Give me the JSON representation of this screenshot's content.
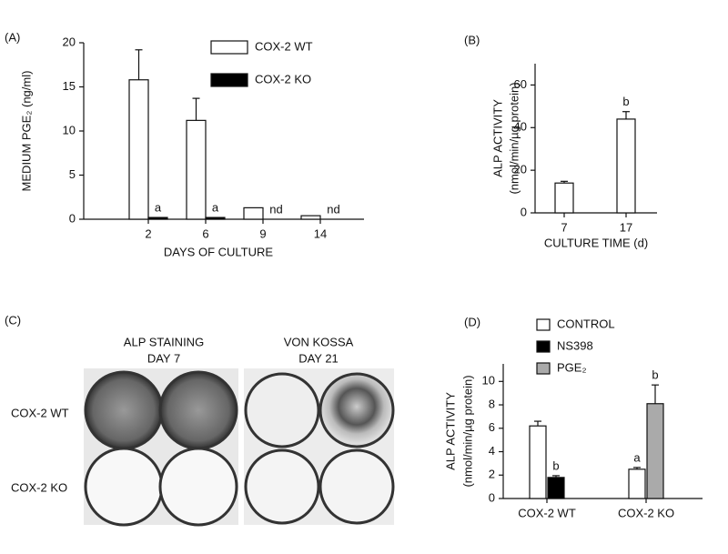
{
  "chart_data": [
    {
      "type": "bar",
      "panel_label": "(A)",
      "ylabel": "MEDIUM PGE₂ (ng/ml)",
      "xlabel": "DAYS OF CULTURE",
      "categories": [
        "2",
        "6",
        "9",
        "14"
      ],
      "series": [
        {
          "name": "COX-2 WT",
          "color": "#ffffff",
          "values": [
            15.8,
            11.2,
            1.3,
            0.4
          ],
          "errors": [
            3.4,
            2.5,
            null,
            null
          ],
          "annotations": [
            null,
            null,
            null,
            null
          ]
        },
        {
          "name": "COX-2 KO",
          "color": "#000000",
          "values": [
            0.2,
            0.2,
            null,
            null
          ],
          "errors": [
            null,
            null,
            null,
            null
          ],
          "annotations": [
            "a",
            "a",
            "nd",
            "nd"
          ]
        }
      ],
      "ylim": [
        0,
        20
      ],
      "yticks": [
        0,
        5,
        10,
        15,
        20
      ],
      "legend": "top-right"
    },
    {
      "type": "bar",
      "panel_label": "(B)",
      "ylabel": [
        "ALP ACTIVITY",
        "(nmol/min/µg protein)"
      ],
      "xlabel": "CULTURE TIME (d)",
      "categories": [
        "7",
        "17"
      ],
      "series": [
        {
          "color": "#ffffff",
          "values": [
            14,
            44
          ],
          "errors": [
            0.8,
            3.5
          ],
          "annotations": [
            null,
            "b"
          ]
        }
      ],
      "ylim": [
        0,
        70
      ],
      "yticks": [
        0,
        20,
        40,
        60
      ]
    },
    {
      "type": "bar",
      "panel_label": "(D)",
      "ylabel": [
        "ALP ACTIVITY",
        "(nmol/min/µg protein)"
      ],
      "categories": [
        "COX-2 WT",
        "COX-2 KO"
      ],
      "series": [
        {
          "name": "CONTROL",
          "color": "#ffffff",
          "values": [
            6.2,
            2.5
          ],
          "errors": [
            0.4,
            0.15
          ],
          "annotations": [
            null,
            "a"
          ]
        },
        {
          "name": "NS398",
          "color": "#000000",
          "values": [
            1.8,
            null
          ],
          "errors": [
            0.15,
            null
          ],
          "annotations": [
            "b",
            null
          ]
        },
        {
          "name": "PGE₂",
          "color": "#aaaaaa",
          "values": [
            null,
            8.1
          ],
          "errors": [
            null,
            1.6
          ],
          "annotations": [
            null,
            "b"
          ]
        }
      ],
      "ylim": [
        0,
        11.5
      ],
      "yticks": [
        0,
        2,
        4,
        6,
        8,
        10
      ],
      "legend": "top-left"
    }
  ],
  "panel_c": {
    "panel_label": "(C)",
    "columns": [
      [
        "ALP STAINING",
        "DAY 7"
      ],
      [
        "VON KOSSA",
        "DAY 21"
      ]
    ],
    "rows": [
      "COX-2 WT",
      "COX-2 KO"
    ]
  }
}
